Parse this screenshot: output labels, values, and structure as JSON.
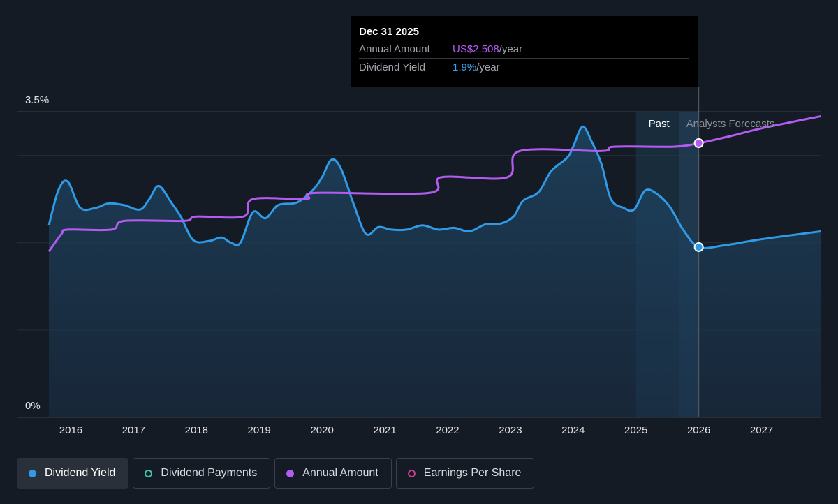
{
  "tooltip": {
    "date": "Dec 31 2025",
    "rows": [
      {
        "label": "Annual Amount",
        "value": "US$2.508",
        "unit": "/year"
      },
      {
        "label": "Dividend Yield",
        "value": "1.9%",
        "unit": "/year"
      }
    ]
  },
  "legend": [
    {
      "label": "Dividend Yield",
      "active": true
    },
    {
      "label": "Dividend Payments",
      "active": false
    },
    {
      "label": "Annual Amount",
      "active": false
    },
    {
      "label": "Earnings Per Share",
      "active": false
    }
  ],
  "colors": {
    "background": "#151b24",
    "yield": "#2f9ae6",
    "annual": "#b45cf2",
    "payments": "#3fc6b0",
    "eps": "#c2408a",
    "grid": "#2c323b"
  },
  "chart_data": {
    "type": "line",
    "region_labels": {
      "past": "Past",
      "forecast": "Analysts Forecasts"
    },
    "y_axis": {
      "min": 0,
      "max": 3.5,
      "tick_labels": [
        "3.5%",
        "0%"
      ],
      "gridlines": [
        0,
        1,
        2,
        3,
        3.5
      ]
    },
    "x_axis": {
      "min": 2015.65,
      "max": 2027.95,
      "tick_labels": [
        "2016",
        "2017",
        "2018",
        "2019",
        "2020",
        "2021",
        "2022",
        "2023",
        "2024",
        "2025",
        "2026",
        "2027"
      ]
    },
    "series": [
      {
        "name": "Dividend Yield",
        "points": [
          [
            2015.65,
            2.2
          ],
          [
            2015.8,
            2.6
          ],
          [
            2015.95,
            2.7
          ],
          [
            2016.15,
            2.4
          ],
          [
            2016.4,
            2.4
          ],
          [
            2016.6,
            2.45
          ],
          [
            2016.85,
            2.43
          ],
          [
            2017.1,
            2.38
          ],
          [
            2017.25,
            2.5
          ],
          [
            2017.4,
            2.65
          ],
          [
            2017.6,
            2.46
          ],
          [
            2017.75,
            2.3
          ],
          [
            2017.95,
            2.03
          ],
          [
            2018.2,
            2.02
          ],
          [
            2018.4,
            2.06
          ],
          [
            2018.55,
            2.0
          ],
          [
            2018.7,
            2.0
          ],
          [
            2018.9,
            2.35
          ],
          [
            2019.1,
            2.28
          ],
          [
            2019.3,
            2.43
          ],
          [
            2019.6,
            2.46
          ],
          [
            2019.85,
            2.6
          ],
          [
            2020.0,
            2.75
          ],
          [
            2020.15,
            2.95
          ],
          [
            2020.3,
            2.85
          ],
          [
            2020.5,
            2.45
          ],
          [
            2020.7,
            2.1
          ],
          [
            2020.9,
            2.18
          ],
          [
            2021.1,
            2.15
          ],
          [
            2021.35,
            2.15
          ],
          [
            2021.6,
            2.2
          ],
          [
            2021.85,
            2.15
          ],
          [
            2022.1,
            2.17
          ],
          [
            2022.35,
            2.13
          ],
          [
            2022.6,
            2.21
          ],
          [
            2022.85,
            2.22
          ],
          [
            2023.05,
            2.3
          ],
          [
            2023.2,
            2.48
          ],
          [
            2023.45,
            2.58
          ],
          [
            2023.65,
            2.82
          ],
          [
            2023.9,
            2.97
          ],
          [
            2024.0,
            3.1
          ],
          [
            2024.15,
            3.33
          ],
          [
            2024.3,
            3.15
          ],
          [
            2024.45,
            2.9
          ],
          [
            2024.6,
            2.5
          ],
          [
            2024.8,
            2.4
          ],
          [
            2024.97,
            2.38
          ],
          [
            2025.15,
            2.6
          ],
          [
            2025.35,
            2.55
          ],
          [
            2025.55,
            2.4
          ],
          [
            2025.75,
            2.15
          ],
          [
            2026.0,
            1.95
          ],
          [
            2026.4,
            1.97
          ],
          [
            2026.9,
            2.03
          ],
          [
            2027.4,
            2.08
          ],
          [
            2027.95,
            2.13
          ]
        ]
      },
      {
        "name": "Annual Amount",
        "points": [
          [
            2015.65,
            1.9
          ],
          [
            2015.85,
            2.1
          ],
          [
            2015.95,
            2.15
          ],
          [
            2016.65,
            2.15
          ],
          [
            2016.85,
            2.25
          ],
          [
            2017.8,
            2.25
          ],
          [
            2018.0,
            2.3
          ],
          [
            2018.75,
            2.3
          ],
          [
            2018.9,
            2.5
          ],
          [
            2019.75,
            2.5
          ],
          [
            2019.9,
            2.57
          ],
          [
            2021.7,
            2.57
          ],
          [
            2021.9,
            2.75
          ],
          [
            2022.95,
            2.75
          ],
          [
            2023.15,
            3.05
          ],
          [
            2024.45,
            3.05
          ],
          [
            2024.65,
            3.1
          ],
          [
            2025.6,
            3.1
          ],
          [
            2026.0,
            3.14
          ],
          [
            2026.5,
            3.22
          ],
          [
            2027.0,
            3.31
          ],
          [
            2027.95,
            3.45
          ]
        ]
      }
    ],
    "highlight": {
      "x": 2026.0,
      "yield": 1.95,
      "annual": 3.14
    },
    "past_region": {
      "start": 2025.0,
      "end": 2026.0
    }
  }
}
